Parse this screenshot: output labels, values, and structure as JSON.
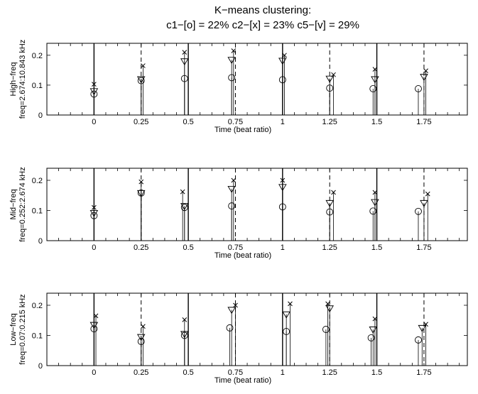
{
  "title": [
    "K−means clustering:",
    "c1−[o] = 22%  c2−[x] = 23%  c5−[v] = 29%"
  ],
  "chart_data": [
    {
      "type": "scatter",
      "ylabel": [
        "High−freq",
        "freq=2.674:10.843 kHz"
      ],
      "xlabel": "Time (beat ratio)",
      "xlim": [
        -0.25,
        1.98
      ],
      "ylim": [
        0,
        0.24
      ],
      "xticks": [
        0,
        0.25,
        0.5,
        0.75,
        1,
        1.25,
        1.5,
        1.75
      ],
      "xtick_labels": [
        "0",
        "0.25",
        "0.5",
        "0.75",
        "1",
        "1.25",
        "1.5",
        "1.75"
      ],
      "yticks": [
        0,
        0.1,
        0.2
      ],
      "ytick_labels": [
        "0",
        "0.1",
        "0.2"
      ],
      "solid_lines": [
        0,
        0.5,
        1,
        1.5
      ],
      "dashed_lines": [
        0.25,
        0.75,
        1.25,
        1.75
      ],
      "series": [
        {
          "marker": "o",
          "x": [
            0.0,
            0.25,
            0.48,
            0.73,
            1.0,
            1.25,
            1.48,
            1.72
          ],
          "y": [
            0.07,
            0.115,
            0.122,
            0.125,
            0.118,
            0.09,
            0.088,
            0.088
          ]
        },
        {
          "marker": "x",
          "x": [
            0.0,
            0.26,
            0.48,
            0.74,
            1.01,
            1.27,
            1.49,
            1.76
          ],
          "y": [
            0.103,
            0.165,
            0.21,
            0.215,
            0.2,
            0.135,
            0.153,
            0.148
          ]
        },
        {
          "marker": "v",
          "x": [
            0.0,
            0.25,
            0.48,
            0.73,
            1.0,
            1.25,
            1.49,
            1.75
          ],
          "y": [
            0.08,
            0.12,
            0.18,
            0.185,
            0.182,
            0.122,
            0.12,
            0.128
          ]
        }
      ]
    },
    {
      "type": "scatter",
      "ylabel": [
        "Mid−freq",
        "freq=0.252:2.674 kHz"
      ],
      "xlabel": "Time (beat ratio)",
      "xlim": [
        -0.25,
        1.98
      ],
      "ylim": [
        0,
        0.24
      ],
      "xticks": [
        0,
        0.25,
        0.5,
        0.75,
        1,
        1.25,
        1.5,
        1.75
      ],
      "xtick_labels": [
        "0",
        "0.25",
        "0.5",
        "0.75",
        "1",
        "1.25",
        "1.5",
        "1.75"
      ],
      "yticks": [
        0,
        0.1,
        0.2
      ],
      "ytick_labels": [
        "0",
        "0.1",
        "0.2"
      ],
      "solid_lines": [
        0,
        0.5,
        1,
        1.5
      ],
      "dashed_lines": [
        0.25,
        0.75,
        1.25,
        1.75
      ],
      "series": [
        {
          "marker": "o",
          "x": [
            0.0,
            0.25,
            0.48,
            0.73,
            1.0,
            1.25,
            1.48,
            1.72
          ],
          "y": [
            0.083,
            0.158,
            0.11,
            0.115,
            0.112,
            0.095,
            0.098,
            0.097
          ]
        },
        {
          "marker": "x",
          "x": [
            0.0,
            0.25,
            0.47,
            0.74,
            1.0,
            1.27,
            1.49,
            1.77
          ],
          "y": [
            0.11,
            0.195,
            0.162,
            0.2,
            0.2,
            0.16,
            0.16,
            0.155
          ]
        },
        {
          "marker": "v",
          "x": [
            0.0,
            0.25,
            0.48,
            0.73,
            1.0,
            1.25,
            1.49,
            1.75
          ],
          "y": [
            0.092,
            0.158,
            0.115,
            0.172,
            0.178,
            0.125,
            0.128,
            0.125
          ]
        }
      ]
    },
    {
      "type": "scatter",
      "ylabel": [
        "Low−freq",
        "freq=0.07:0.215 kHz"
      ],
      "xlabel": "Time (beat ratio)",
      "xlim": [
        -0.25,
        1.98
      ],
      "ylim": [
        0,
        0.24
      ],
      "xticks": [
        0,
        0.25,
        0.5,
        0.75,
        1,
        1.25,
        1.5,
        1.75
      ],
      "xtick_labels": [
        "0",
        "0.25",
        "0.5",
        "0.75",
        "1",
        "1.25",
        "1.5",
        "1.75"
      ],
      "yticks": [
        0,
        0.1,
        0.2
      ],
      "ytick_labels": [
        "0",
        "0.1",
        "0.2"
      ],
      "solid_lines": [
        0,
        0.5,
        1,
        1.5
      ],
      "dashed_lines": [
        0.25,
        0.75,
        1.25,
        1.75
      ],
      "series": [
        {
          "marker": "o",
          "x": [
            0.0,
            0.25,
            0.48,
            0.72,
            1.02,
            1.23,
            1.47,
            1.72
          ],
          "y": [
            0.122,
            0.08,
            0.1,
            0.125,
            0.113,
            0.12,
            0.092,
            0.085
          ]
        },
        {
          "marker": "x",
          "x": [
            0.01,
            0.26,
            0.48,
            0.75,
            1.04,
            1.24,
            1.49,
            1.76
          ],
          "y": [
            0.165,
            0.13,
            0.152,
            0.2,
            0.205,
            0.205,
            0.155,
            0.137
          ]
        },
        {
          "marker": "v",
          "x": [
            0.0,
            0.25,
            0.48,
            0.73,
            1.02,
            1.25,
            1.48,
            1.74
          ],
          "y": [
            0.135,
            0.095,
            0.105,
            0.185,
            0.17,
            0.19,
            0.12,
            0.125
          ]
        }
      ]
    }
  ]
}
